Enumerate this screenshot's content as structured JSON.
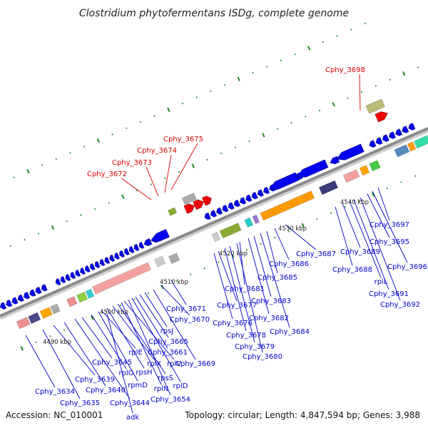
{
  "title": "Clostridium phytofermentans ISDg, complete genome",
  "footer": {
    "accession": "Accession: NC_010001",
    "topology": "Topology: circular; Length: 4,847,594 bp; Genes: 3,988"
  },
  "colors": {
    "blue_gene": "#0000ee",
    "red_gene": "#ee0000",
    "blue_label": "#0000cc",
    "red_label": "#dd0000",
    "ticks": "#1a8a1a",
    "backbone": "#8a8a8a"
  },
  "scale_labels": [
    "4490 kbp",
    "4500 kbp",
    "4510 kbp",
    "4520 kbp",
    "4530 kbp",
    "4540 kbp"
  ],
  "red_labels": [
    "Cphy_3672",
    "Cphy_3673",
    "Cphy_3674",
    "Cphy_3675",
    "Cphy_3698"
  ],
  "blue_labels": [
    "Cphy_3634",
    "Cphy_3635",
    "Cphy_3639",
    "Cphy_3640",
    "Cphy_3644",
    "Cphy_3645",
    "rplO",
    "rpmD",
    "rplE",
    "rpsH",
    "rplX",
    "rpsS",
    "rplN",
    "rplV",
    "Cphy_3654",
    "rplD",
    "Cphy_3661",
    "Cphy_3665",
    "rpsJ",
    "Cphy_3669",
    "Cphy_3670",
    "Cphy_3671",
    "adk",
    "Cphy_3676",
    "Cphy_3677",
    "Cphy_3678",
    "Cphy_3679",
    "Cphy_3680",
    "Cphy_3681",
    "Cphy_3682",
    "Cphy_3683",
    "Cphy_3684",
    "Cphy_3685",
    "Cphy_3686",
    "Cphy_3687",
    "Cphy_3688",
    "Cphy_3689",
    "rpiL",
    "Cphy_3691",
    "Cphy_3692",
    "Cphy_3695",
    "Cphy_3696",
    "Cphy_3697"
  ]
}
